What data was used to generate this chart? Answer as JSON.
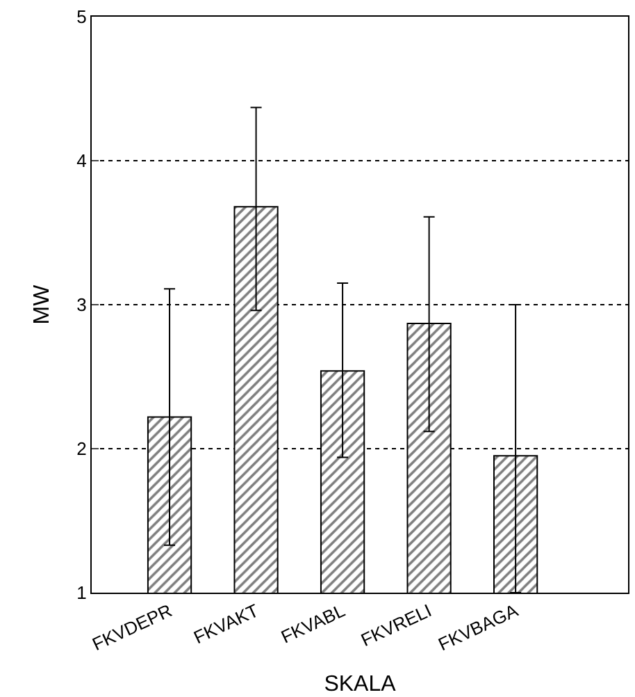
{
  "chart_data": {
    "type": "bar",
    "xlabel": "SKALA",
    "ylabel": "MW",
    "categories": [
      "FKVDEPR",
      "FKVAKT",
      "FKVABL",
      "FKVRELI",
      "FKVBAGA"
    ],
    "series": [
      {
        "color": "#000000",
        "values": [
          2.22,
          3.68,
          2.54,
          2.87,
          1.95
        ],
        "errors": [
          [
            1.33,
            3.11
          ],
          [
            2.96,
            4.37
          ],
          [
            1.94,
            3.15
          ],
          [
            2.12,
            3.61
          ],
          [
            1.0,
            3.0
          ]
        ]
      }
    ],
    "ylim": [
      1,
      5
    ],
    "yticks": [
      1,
      2,
      3,
      4,
      5
    ],
    "grid": "y",
    "legend": false
  }
}
